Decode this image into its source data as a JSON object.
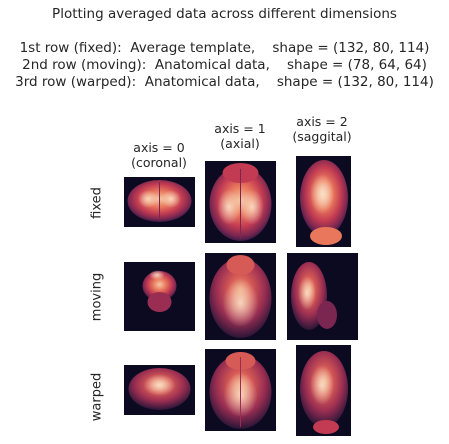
{
  "figure": {
    "title_lines": [
      "Plotting averaged data across different dimensions",
      "",
      "1st row (fixed):  Average template,    shape = (132, 80, 114)",
      "2nd row (moving):  Anatomical data,    shape = (78, 64, 64)",
      "3rd row (warped):  Anatomical data,    shape = (132, 80, 114)"
    ],
    "columns": [
      {
        "label": "axis = 0\n(coronal)"
      },
      {
        "label": "axis = 1\n(axial)"
      },
      {
        "label": "axis = 2\n(saggital)"
      }
    ],
    "rows": [
      {
        "label": "fixed"
      },
      {
        "label": "moving"
      },
      {
        "label": "warped"
      }
    ],
    "colormap": [
      "#0b0a20",
      "#3b1c47",
      "#7a2650",
      "#c23b52",
      "#e9775c",
      "#f5c9a5"
    ]
  }
}
